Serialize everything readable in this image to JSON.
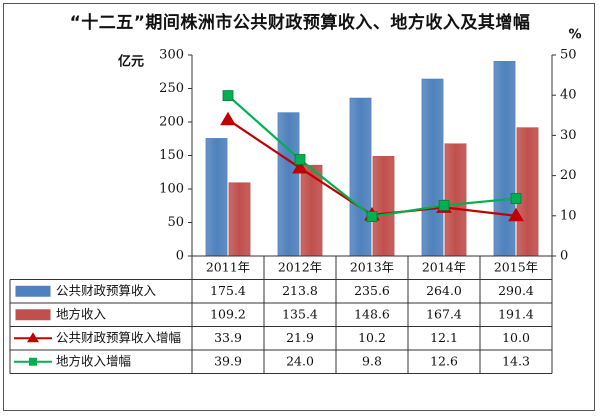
{
  "title": "“十二五”期间株洲市公共财政预算收入、地方收入及其增幅",
  "colors": {
    "bar_public": "#4f81bd",
    "bar_local": "#c0504d",
    "line_public": "#c00000",
    "line_local": "#00b050"
  },
  "chart_data": {
    "type": "bar",
    "title": "“十二五”期间株洲市公共财政预算收入、地方收入及其增幅",
    "categories": [
      "2011年",
      "2012年",
      "2013年",
      "2014年",
      "2015年"
    ],
    "y_left": {
      "label": "亿元",
      "ylim": [
        0,
        300
      ],
      "ticks": [
        0,
        50,
        100,
        150,
        200,
        250,
        300
      ]
    },
    "y_right": {
      "label": "%",
      "ylim": [
        0,
        50
      ],
      "ticks": [
        0,
        10,
        20,
        30,
        40,
        50
      ]
    },
    "series": [
      {
        "name": "公共财政预算收入",
        "type": "bar",
        "axis": "left",
        "values": [
          175.4,
          213.8,
          235.6,
          264.0,
          290.4
        ],
        "labels": [
          "175.4",
          "213.8",
          "235.6",
          "264.0",
          "290.4"
        ]
      },
      {
        "name": "地方收入",
        "type": "bar",
        "axis": "left",
        "values": [
          109.2,
          135.4,
          148.6,
          167.4,
          191.4
        ],
        "labels": [
          "109.2",
          "135.4",
          "148.6",
          "167.4",
          "191.4"
        ]
      },
      {
        "name": "公共财政预算收入增幅",
        "type": "line",
        "marker": "triangle",
        "axis": "right",
        "values": [
          33.9,
          21.9,
          10.2,
          12.1,
          10.0
        ],
        "labels": [
          "33.9",
          "21.9",
          "10.2",
          "12.1",
          "10.0"
        ]
      },
      {
        "name": "地方收入增幅",
        "type": "line",
        "marker": "square",
        "axis": "right",
        "values": [
          39.9,
          24.0,
          9.8,
          12.6,
          14.3
        ],
        "labels": [
          "39.9",
          "24.0",
          "9.8",
          "12.6",
          "14.3"
        ]
      }
    ],
    "grid": false,
    "legend": "data-table"
  }
}
